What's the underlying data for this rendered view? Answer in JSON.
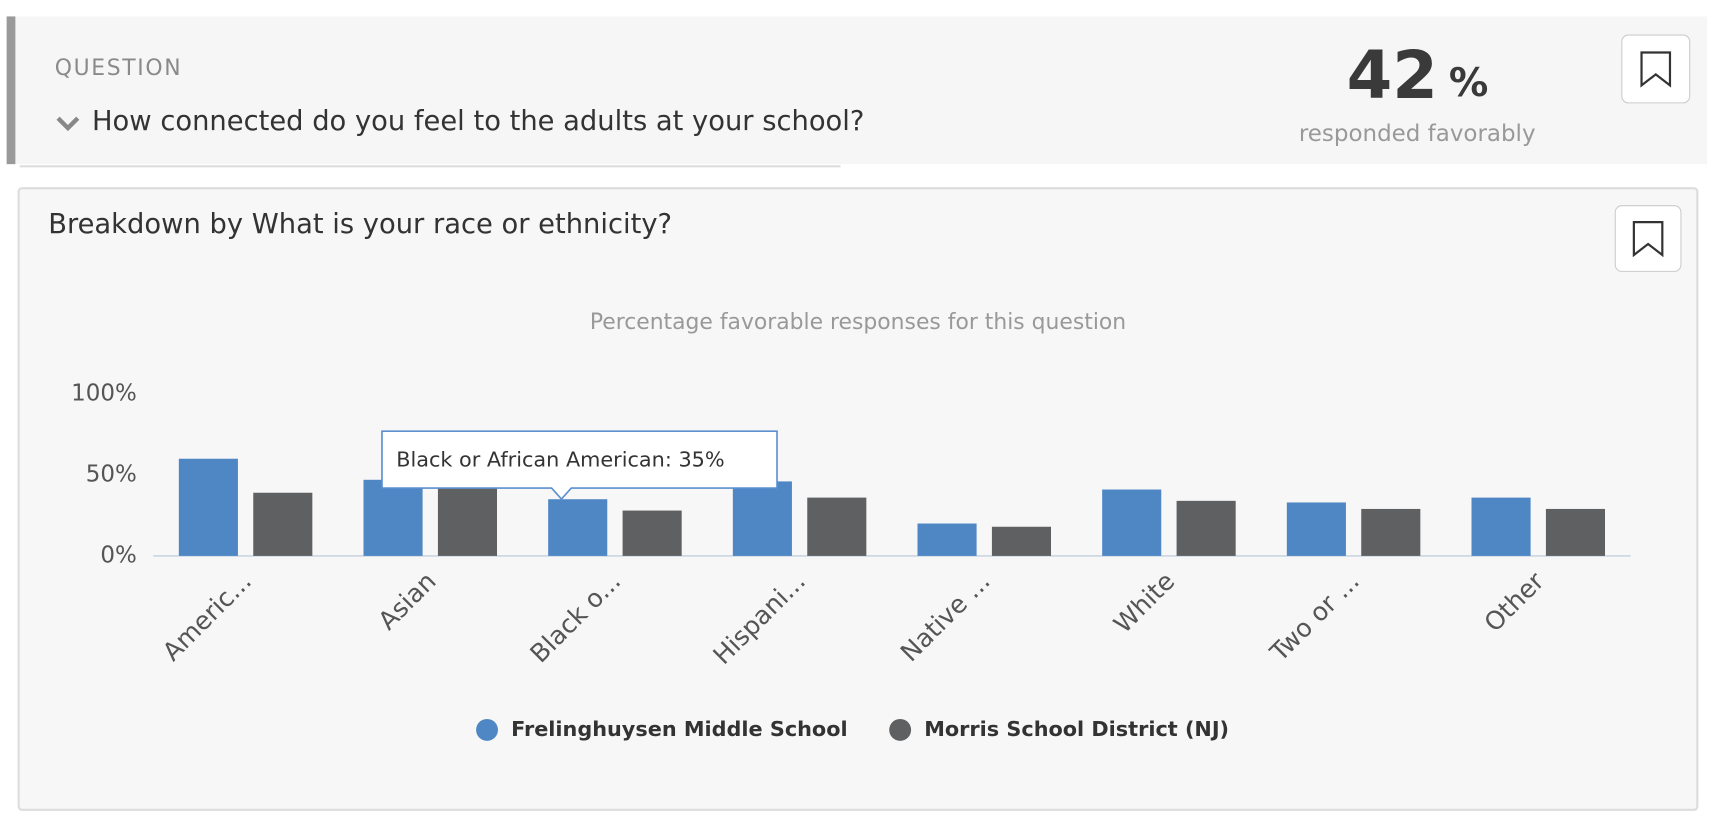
{
  "question": {
    "label": "QUESTION",
    "text": "How connected do you feel to the adults at your school?"
  },
  "summary": {
    "value": 42,
    "unit": "%",
    "caption": "responded favorably"
  },
  "chart_data": {
    "type": "bar",
    "title": "Breakdown by What is your race or ethnicity?",
    "subtitle": "Percentage favorable responses for this question",
    "categories": [
      "Americ...",
      "Asian",
      "Black o...",
      "Hispani...",
      "Native ...",
      "White",
      "Two or ...",
      "Other"
    ],
    "series": [
      {
        "name": "Frelinghuysen Middle School",
        "color": "#4f87c5",
        "values": [
          60,
          47,
          35,
          46,
          20,
          41,
          33,
          36
        ]
      },
      {
        "name": "Morris School District (NJ)",
        "color": "#5f6062",
        "values": [
          39,
          42,
          28,
          36,
          18,
          34,
          29,
          29
        ]
      }
    ],
    "ylim": [
      0,
      100
    ],
    "yticks": [
      {
        "value": 0,
        "label": "0%"
      },
      {
        "value": 50,
        "label": "50%"
      },
      {
        "value": 100,
        "label": "100%"
      }
    ],
    "annotations": [
      {
        "text": "Black or African American: 35%"
      }
    ]
  }
}
